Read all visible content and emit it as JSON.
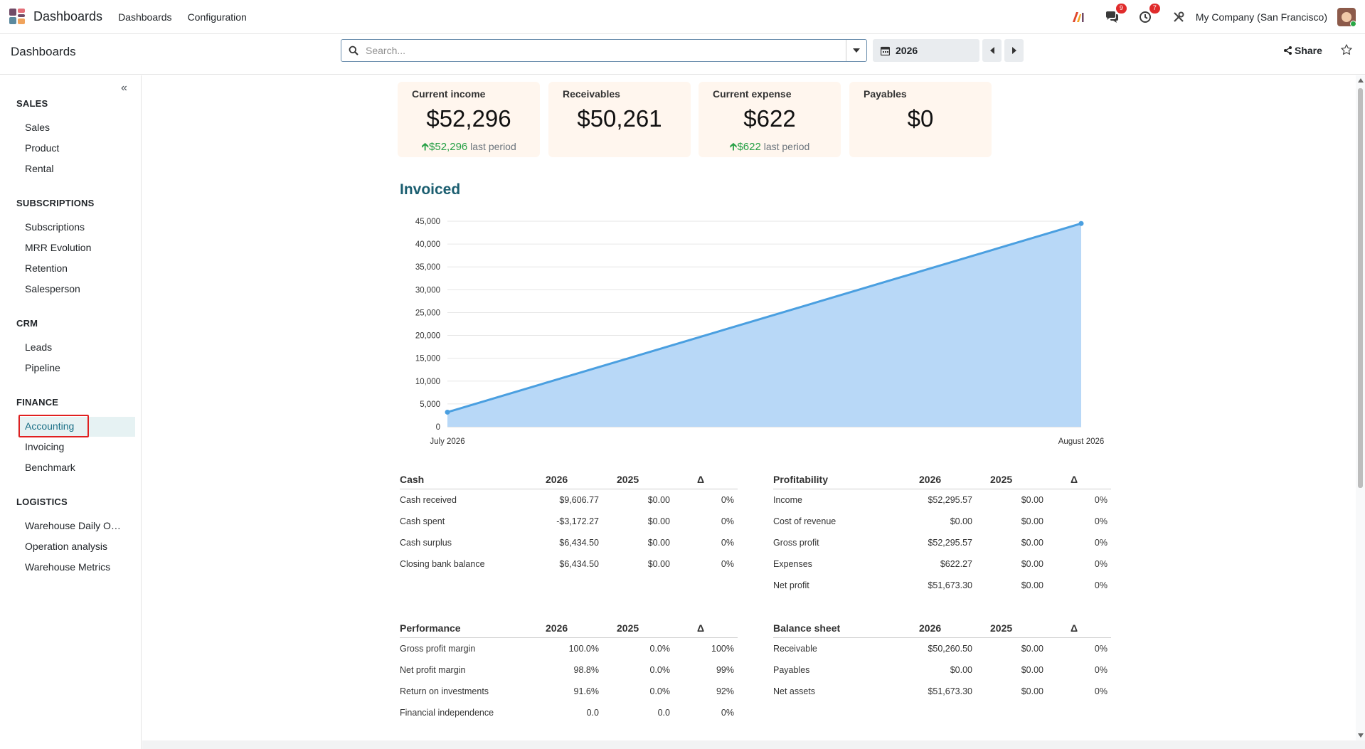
{
  "navbar": {
    "app_name": "Dashboards",
    "menus": [
      "Dashboards",
      "Configuration"
    ],
    "messages_badge": "9",
    "activity_badge": "7",
    "company": "My Company (San Francisco)"
  },
  "control": {
    "breadcrumb": "Dashboards",
    "search_placeholder": "Search...",
    "period": "2026",
    "share_label": "Share"
  },
  "sidebar": {
    "collapse_glyph": "«",
    "sections": [
      {
        "title": "SALES",
        "items": [
          "Sales",
          "Product",
          "Rental"
        ]
      },
      {
        "title": "SUBSCRIPTIONS",
        "items": [
          "Subscriptions",
          "MRR Evolution",
          "Retention",
          "Salesperson"
        ]
      },
      {
        "title": "CRM",
        "items": [
          "Leads",
          "Pipeline"
        ]
      },
      {
        "title": "FINANCE",
        "items": [
          "Accounting",
          "Invoicing",
          "Benchmark"
        ]
      },
      {
        "title": "LOGISTICS",
        "items": [
          "Warehouse Daily Operations",
          "Operation analysis",
          "Warehouse Metrics"
        ]
      }
    ],
    "active_item": "Accounting"
  },
  "kpis": [
    {
      "title": "Current income",
      "value": "$52,296",
      "trend_value": "$52,296",
      "trend_label": "last period"
    },
    {
      "title": "Receivables",
      "value": "$50,261",
      "trend_value": "",
      "trend_label": ""
    },
    {
      "title": "Current expense",
      "value": "$622",
      "trend_value": "$622",
      "trend_label": "last period"
    },
    {
      "title": "Payables",
      "value": "$0",
      "trend_value": "",
      "trend_label": ""
    }
  ],
  "chart_data": {
    "type": "area",
    "title": "Invoiced",
    "x": [
      "July 2026",
      "August 2026"
    ],
    "series": [
      {
        "values": [
          3200,
          44500
        ]
      }
    ],
    "yticks": [
      "0",
      "5,000",
      "10,000",
      "15,000",
      "20,000",
      "25,000",
      "30,000",
      "35,000",
      "40,000",
      "45,000"
    ],
    "ylim": [
      0,
      45000
    ],
    "grid": true,
    "color": "#4a9fe0",
    "fill": "#b8d8f7"
  },
  "tables": {
    "cash": {
      "headers": [
        "Cash",
        "2026",
        "2025",
        "Δ"
      ],
      "rows": [
        [
          "Cash received",
          "$9,606.77",
          "$0.00",
          "0%"
        ],
        [
          "Cash spent",
          "-$3,172.27",
          "$0.00",
          "0%"
        ],
        [
          "Cash surplus",
          "$6,434.50",
          "$0.00",
          "0%"
        ],
        [
          "Closing bank balance",
          "$6,434.50",
          "$0.00",
          "0%"
        ]
      ]
    },
    "profitability": {
      "headers": [
        "Profitability",
        "2026",
        "2025",
        "Δ"
      ],
      "rows": [
        [
          "Income",
          "$52,295.57",
          "$0.00",
          "0%"
        ],
        [
          "Cost of revenue",
          "$0.00",
          "$0.00",
          "0%"
        ],
        [
          "Gross profit",
          "$52,295.57",
          "$0.00",
          "0%"
        ],
        [
          "Expenses",
          "$622.27",
          "$0.00",
          "0%"
        ],
        [
          "Net profit",
          "$51,673.30",
          "$0.00",
          "0%"
        ]
      ]
    },
    "performance": {
      "headers": [
        "Performance",
        "2026",
        "2025",
        "Δ"
      ],
      "rows": [
        [
          "Gross profit margin",
          "100.0%",
          "0.0%",
          "100%"
        ],
        [
          "Net profit margin",
          "98.8%",
          "0.0%",
          "99%"
        ],
        [
          "Return on investments",
          "91.6%",
          "0.0%",
          "92%"
        ],
        [
          "Financial independence",
          "0.0",
          "0.0",
          "0%"
        ]
      ]
    },
    "balance": {
      "headers": [
        "Balance sheet",
        "2026",
        "2025",
        "Δ"
      ],
      "rows": [
        [
          "Receivable",
          "$50,260.50",
          "$0.00",
          "0%"
        ],
        [
          "Payables",
          "$0.00",
          "$0.00",
          "0%"
        ],
        [
          "Net assets",
          "$51,673.30",
          "$0.00",
          "0%"
        ]
      ]
    }
  }
}
